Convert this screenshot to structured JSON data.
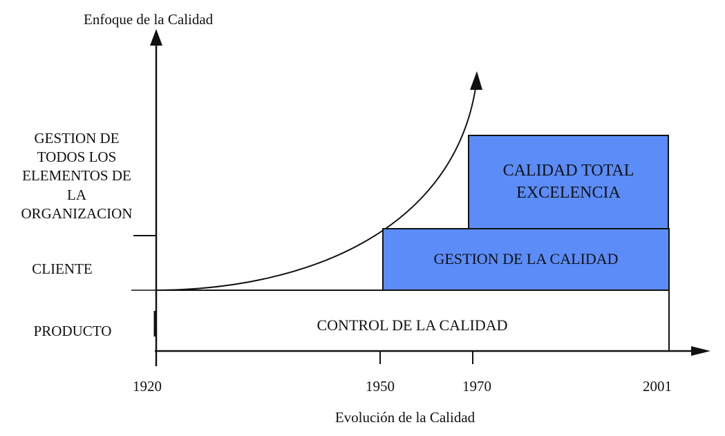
{
  "y_axis_title": "Enfoque de la Calidad",
  "x_axis_title": "Evolución de la Calidad",
  "y_levels": {
    "gestion_lines": [
      "GESTION DE",
      "TODOS LOS",
      "ELEMENTOS DE",
      "LA",
      "ORGANIZACION"
    ],
    "cliente": "CLIENTE",
    "producto": "PRODUCTO"
  },
  "x_ticks": [
    "1920",
    "1950",
    "1970",
    "2001"
  ],
  "stages": {
    "control": "CONTROL DE LA CALIDAD",
    "gestion": "GESTION DE LA CALIDAD",
    "total_line1": "CALIDAD TOTAL",
    "total_line2": "EXCELENCIA"
  },
  "colors": {
    "stage_fill": "#5b8cf8",
    "axis": "#111111"
  }
}
